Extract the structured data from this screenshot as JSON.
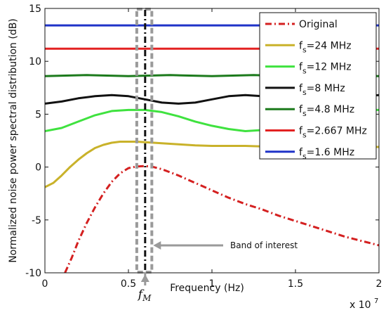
{
  "chart_data": {
    "type": "line",
    "xlabel": "Frequency (Hz)",
    "ylabel": "Normalized noise power spectral distribution (dB)",
    "x_exponent": "x 10",
    "x_exponent_power": "7",
    "xlim": [
      0,
      20000000
    ],
    "ylim": [
      -10,
      15
    ],
    "xticks": [
      0,
      5000000,
      10000000,
      15000000,
      20000000
    ],
    "xtick_labels": [
      "0",
      "0.5",
      "1",
      "1.5",
      "2"
    ],
    "yticks": [
      -10,
      -5,
      0,
      5,
      10,
      15
    ],
    "ytick_labels": [
      "-10",
      "-5",
      "0",
      "5",
      "10",
      "15"
    ],
    "grid": false,
    "legend_position": "top-right",
    "series": [
      {
        "name": "Original",
        "label_main": "Original",
        "label_sub": "",
        "label_rest": "",
        "color": "#d42020",
        "dash": "dashdot",
        "x": [
          1200000,
          1600000,
          2000000,
          2500000,
          3000000,
          3500000,
          4000000,
          4500000,
          5000000,
          5500000,
          6000000,
          6500000,
          7000000,
          8000000,
          9000000,
          10000000,
          11000000,
          12000000,
          13000000,
          14000000,
          15000000,
          16000000,
          17000000,
          18000000,
          19000000,
          20000000
        ],
        "y": [
          -10.0,
          -8.6,
          -7.0,
          -5.3,
          -3.8,
          -2.5,
          -1.4,
          -0.6,
          -0.1,
          0.05,
          0.1,
          0.0,
          -0.2,
          -0.8,
          -1.5,
          -2.2,
          -2.9,
          -3.5,
          -4.0,
          -4.6,
          -5.1,
          -5.6,
          -6.1,
          -6.6,
          -7.0,
          -7.4
        ]
      },
      {
        "name": "fs=24 MHz",
        "label_main": "f",
        "label_sub": "s",
        "label_rest": "=24 MHz",
        "color": "#c9b22a",
        "dash": "solid",
        "x": [
          0,
          500000,
          1000000,
          1500000,
          2000000,
          2500000,
          3000000,
          3500000,
          4000000,
          4500000,
          5000000,
          5500000,
          6000000,
          6500000,
          7000000,
          8000000,
          9000000,
          10000000,
          11000000,
          12000000,
          13000000,
          14000000,
          15000000,
          16000000,
          17000000,
          18000000,
          19000000,
          20000000
        ],
        "y": [
          -1.9,
          -1.5,
          -0.8,
          0.0,
          0.7,
          1.3,
          1.8,
          2.1,
          2.3,
          2.4,
          2.4,
          2.4,
          2.35,
          2.3,
          2.25,
          2.15,
          2.05,
          2.0,
          2.0,
          2.0,
          1.95,
          1.9,
          1.9,
          1.9,
          1.9,
          1.9,
          1.9,
          1.9
        ]
      },
      {
        "name": "fs=12 MHz",
        "label_main": "f",
        "label_sub": "s",
        "label_rest": "=12 MHz",
        "color": "#3fe23f",
        "dash": "solid",
        "x": [
          0,
          1000000,
          2000000,
          3000000,
          4000000,
          5000000,
          6000000,
          7000000,
          8000000,
          9000000,
          10000000,
          11000000,
          12000000,
          13000000,
          14000000,
          15000000,
          16000000,
          17000000,
          18000000,
          19000000,
          20000000
        ],
        "y": [
          3.4,
          3.7,
          4.3,
          4.9,
          5.3,
          5.4,
          5.4,
          5.2,
          4.8,
          4.3,
          3.9,
          3.6,
          3.4,
          3.5,
          3.9,
          4.3,
          4.7,
          5.0,
          5.3,
          5.4,
          5.4
        ]
      },
      {
        "name": "fs=8 MHz",
        "label_main": "f",
        "label_sub": "s",
        "label_rest": "=8 MHz",
        "color": "#111111",
        "dash": "solid",
        "x": [
          0,
          1000000,
          2000000,
          3000000,
          4000000,
          5000000,
          6000000,
          7000000,
          8000000,
          9000000,
          10000000,
          11000000,
          12000000,
          13000000,
          14000000,
          15000000,
          16000000,
          17000000,
          18000000,
          19000000,
          20000000
        ],
        "y": [
          6.0,
          6.2,
          6.5,
          6.7,
          6.8,
          6.7,
          6.4,
          6.1,
          6.0,
          6.1,
          6.4,
          6.7,
          6.8,
          6.7,
          6.4,
          6.1,
          6.0,
          6.1,
          6.4,
          6.7,
          6.8
        ]
      },
      {
        "name": "fs=4.8 MHz",
        "label_main": "f",
        "label_sub": "s",
        "label_rest": "=4.8 MHz",
        "color": "#1c7a1c",
        "dash": "solid",
        "x": [
          0,
          2500000,
          5000000,
          7500000,
          10000000,
          12500000,
          15000000,
          17500000,
          20000000
        ],
        "y": [
          8.6,
          8.7,
          8.6,
          8.7,
          8.6,
          8.7,
          8.6,
          8.7,
          8.6
        ]
      },
      {
        "name": "fs=2.667 MHz",
        "label_main": "f",
        "label_sub": "s",
        "label_rest": "=2.667 MHz",
        "color": "#e32222",
        "dash": "solid",
        "x": [
          0,
          20000000
        ],
        "y": [
          11.2,
          11.2
        ]
      },
      {
        "name": "fs=1.6 MHz",
        "label_main": "f",
        "label_sub": "s",
        "label_rest": "=1.6 MHz",
        "color": "#1f33c8",
        "dash": "solid",
        "x": [
          0,
          20000000
        ],
        "y": [
          13.4,
          13.4
        ]
      }
    ],
    "band_of_interest": {
      "label": "Band of interest",
      "x_start": 5500000,
      "x_end": 6400000,
      "color": "#9a9a9a"
    },
    "center_marker": {
      "x": 6000000,
      "label_main": "f",
      "label_sub": "M"
    }
  }
}
